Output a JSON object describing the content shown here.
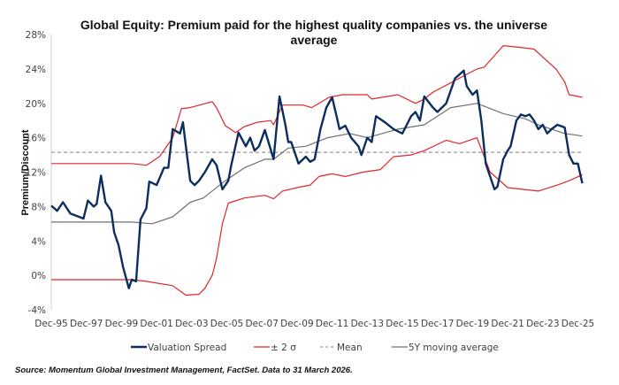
{
  "chart_data": {
    "type": "line",
    "title_line1": "Global Equity: Premium paid for the highest quality companies vs. the universe",
    "title_line2": "average",
    "ylabel": "Premium/Discount",
    "xlabel": "",
    "ylim": [
      -4,
      28
    ],
    "yticks": [
      "28%",
      "24%",
      "20%",
      "16%",
      "12%",
      "8%",
      "4%",
      "0%",
      "-4%"
    ],
    "ytick_values": [
      28,
      24,
      20,
      16,
      12,
      8,
      4,
      0,
      -4
    ],
    "xticks": [
      "Dec-95",
      "Dec-97",
      "Dec-99",
      "Dec-01",
      "Dec-03",
      "Dec-05",
      "Dec-07",
      "Dec-09",
      "Dec-11",
      "Dec-13",
      "Dec-15",
      "Dec-17",
      "Dec-19",
      "Dec-21",
      "Dec-23",
      "Dec-25"
    ],
    "xlim": [
      "1995-12",
      "2026-03"
    ],
    "grid": false,
    "legend_placement": "bottom",
    "colors": {
      "spread": "#0b2d5f",
      "band": "#e0262b",
      "mean": "#999999",
      "ma": "#707070"
    },
    "mean": 14.3,
    "series": [
      {
        "name": "Valuation Spread",
        "key": "spread",
        "points": [
          [
            "1995-12",
            8.1
          ],
          [
            "1996-04",
            7.5
          ],
          [
            "1996-08",
            8.5
          ],
          [
            "1997-01",
            7.2
          ],
          [
            "1997-07",
            6.8
          ],
          [
            "1997-10",
            6.6
          ],
          [
            "1998-01",
            8.7
          ],
          [
            "1998-05",
            8.0
          ],
          [
            "1998-07",
            8.3
          ],
          [
            "1998-10",
            11.6
          ],
          [
            "1999-01",
            8.5
          ],
          [
            "1999-05",
            7.5
          ],
          [
            "1999-07",
            5.0
          ],
          [
            "1999-10",
            3.5
          ],
          [
            "2000-01",
            1.0
          ],
          [
            "2000-05",
            -1.5
          ],
          [
            "2000-07",
            -0.5
          ],
          [
            "2000-10",
            -0.7
          ],
          [
            "2001-01",
            6.5
          ],
          [
            "2001-05",
            7.8
          ],
          [
            "2001-07",
            10.9
          ],
          [
            "2001-12",
            10.5
          ],
          [
            "2002-05",
            12.5
          ],
          [
            "2002-08",
            12.5
          ],
          [
            "2002-11",
            17.0
          ],
          [
            "2003-04",
            16.5
          ],
          [
            "2003-06",
            17.8
          ],
          [
            "2003-08",
            15.0
          ],
          [
            "2003-11",
            11.0
          ],
          [
            "2004-02",
            10.5
          ],
          [
            "2004-05",
            11.0
          ],
          [
            "2004-09",
            12.0
          ],
          [
            "2005-02",
            13.5
          ],
          [
            "2005-05",
            12.8
          ],
          [
            "2005-09",
            10.0
          ],
          [
            "2006-01",
            11.0
          ],
          [
            "2006-03",
            12.8
          ],
          [
            "2006-08",
            16.6
          ],
          [
            "2007-01",
            15.0
          ],
          [
            "2007-04",
            16.0
          ],
          [
            "2007-07",
            14.5
          ],
          [
            "2007-10",
            15.0
          ],
          [
            "2008-02",
            16.9
          ],
          [
            "2008-08",
            13.5
          ],
          [
            "2008-12",
            20.8
          ],
          [
            "2009-04",
            17.5
          ],
          [
            "2009-06",
            15.5
          ],
          [
            "2009-08",
            15.5
          ],
          [
            "2010-01",
            13.0
          ],
          [
            "2010-06",
            13.8
          ],
          [
            "2010-09",
            13.2
          ],
          [
            "2010-12",
            13.5
          ],
          [
            "2011-04",
            17.0
          ],
          [
            "2011-08",
            19.5
          ],
          [
            "2011-12",
            20.7
          ],
          [
            "2012-03",
            18.5
          ],
          [
            "2012-05",
            17.0
          ],
          [
            "2012-09",
            17.4
          ],
          [
            "2013-01",
            16.0
          ],
          [
            "2013-06",
            15.0
          ],
          [
            "2013-08",
            14.0
          ],
          [
            "2013-12",
            16.0
          ],
          [
            "2014-03",
            15.5
          ],
          [
            "2014-06",
            18.5
          ],
          [
            "2014-12",
            17.8
          ],
          [
            "2015-06",
            17.0
          ],
          [
            "2015-12",
            16.5
          ],
          [
            "2016-03",
            17.5
          ],
          [
            "2016-06",
            18.5
          ],
          [
            "2016-09",
            19.0
          ],
          [
            "2016-12",
            18.0
          ],
          [
            "2017-03",
            20.8
          ],
          [
            "2017-09",
            19.5
          ],
          [
            "2017-12",
            19.0
          ],
          [
            "2018-03",
            19.5
          ],
          [
            "2018-06",
            20.0
          ],
          [
            "2018-12",
            22.9
          ],
          [
            "2019-06",
            23.8
          ],
          [
            "2019-08",
            22.0
          ],
          [
            "2019-12",
            21.0
          ],
          [
            "2020-03",
            21.5
          ],
          [
            "2020-06",
            18.0
          ],
          [
            "2020-09",
            13.0
          ],
          [
            "2021-01",
            11.0
          ],
          [
            "2021-03",
            10.0
          ],
          [
            "2021-05",
            10.3
          ],
          [
            "2021-09",
            13.5
          ],
          [
            "2021-12",
            14.5
          ],
          [
            "2022-02",
            15.0
          ],
          [
            "2022-06",
            18.0
          ],
          [
            "2022-09",
            18.7
          ],
          [
            "2022-12",
            18.5
          ],
          [
            "2023-03",
            18.7
          ],
          [
            "2023-06",
            18.0
          ],
          [
            "2023-09",
            17.0
          ],
          [
            "2023-12",
            17.5
          ],
          [
            "2024-03",
            16.5
          ],
          [
            "2024-06",
            17.0
          ],
          [
            "2024-10",
            17.5
          ],
          [
            "2025-03",
            17.2
          ],
          [
            "2025-06",
            14.0
          ],
          [
            "2025-09",
            13.0
          ],
          [
            "2025-12",
            13.0
          ],
          [
            "2026-03",
            10.7
          ]
        ]
      },
      {
        "name": "± 2 σ",
        "key": "band_upper",
        "points": [
          [
            "1995-12",
            13.0
          ],
          [
            "2000-07",
            13.0
          ],
          [
            "2001-05",
            12.8
          ],
          [
            "2002-02",
            13.8
          ],
          [
            "2002-11",
            16.0
          ],
          [
            "2003-05",
            19.4
          ],
          [
            "2003-11",
            19.5
          ],
          [
            "2005-02",
            20.2
          ],
          [
            "2005-05",
            19.5
          ],
          [
            "2005-11",
            17.4
          ],
          [
            "2006-06",
            16.6
          ],
          [
            "2006-12",
            17.3
          ],
          [
            "2007-09",
            17.8
          ],
          [
            "2008-06",
            18.0
          ],
          [
            "2008-08",
            17.5
          ],
          [
            "2009-02",
            19.8
          ],
          [
            "2010-04",
            19.8
          ],
          [
            "2010-10",
            19.5
          ],
          [
            "2011-10",
            20.7
          ],
          [
            "2012-07",
            21.0
          ],
          [
            "2013-12",
            21.0
          ],
          [
            "2014-03",
            20.5
          ],
          [
            "2015-09",
            21.0
          ],
          [
            "2016-09",
            20.0
          ],
          [
            "2017-03",
            20.5
          ],
          [
            "2017-09",
            21.3
          ],
          [
            "2020-03",
            24.0
          ],
          [
            "2020-08",
            24.2
          ],
          [
            "2021-09",
            26.7
          ],
          [
            "2022-09",
            26.5
          ],
          [
            "2023-06",
            26.3
          ],
          [
            "2024-09",
            24.0
          ],
          [
            "2025-03",
            22.5
          ],
          [
            "2025-06",
            21.0
          ],
          [
            "2026-03",
            20.7
          ]
        ]
      },
      {
        "name": "",
        "key": "band_lower",
        "points": [
          [
            "1995-12",
            -0.5
          ],
          [
            "2000-07",
            -0.5
          ],
          [
            "2001-05",
            -0.7
          ],
          [
            "2002-11",
            -1.2
          ],
          [
            "2003-08",
            -2.3
          ],
          [
            "2004-05",
            -2.2
          ],
          [
            "2004-09",
            -1.5
          ],
          [
            "2005-02",
            0.0
          ],
          [
            "2005-05",
            2.0
          ],
          [
            "2005-09",
            6.0
          ],
          [
            "2006-01",
            8.4
          ],
          [
            "2006-12",
            9.0
          ],
          [
            "2008-02",
            9.3
          ],
          [
            "2008-08",
            8.9
          ],
          [
            "2009-02",
            9.8
          ],
          [
            "2009-12",
            10.2
          ],
          [
            "2010-09",
            10.5
          ],
          [
            "2011-03",
            11.5
          ],
          [
            "2011-12",
            11.8
          ],
          [
            "2012-09",
            11.5
          ],
          [
            "2013-09",
            12.0
          ],
          [
            "2014-09",
            12.3
          ],
          [
            "2015-06",
            13.8
          ],
          [
            "2016-06",
            14.0
          ],
          [
            "2017-03",
            14.5
          ],
          [
            "2018-06",
            15.7
          ],
          [
            "2019-03",
            15.3
          ],
          [
            "2020-03",
            16.0
          ],
          [
            "2020-12",
            12.0
          ],
          [
            "2021-12",
            10.2
          ],
          [
            "2023-09",
            9.8
          ],
          [
            "2024-10",
            10.5
          ],
          [
            "2025-06",
            11.0
          ],
          [
            "2026-03",
            11.7
          ]
        ]
      },
      {
        "name": "5Y moving average",
        "key": "ma",
        "points": [
          [
            "1995-12",
            6.2
          ],
          [
            "2000-07",
            6.2
          ],
          [
            "2001-09",
            6.0
          ],
          [
            "2002-11",
            6.8
          ],
          [
            "2003-11",
            8.5
          ],
          [
            "2004-08",
            9.0
          ],
          [
            "2005-11",
            11.0
          ],
          [
            "2006-12",
            12.5
          ],
          [
            "2008-02",
            13.5
          ],
          [
            "2008-08",
            13.5
          ],
          [
            "2009-06",
            14.8
          ],
          [
            "2010-06",
            15.0
          ],
          [
            "2011-09",
            16.0
          ],
          [
            "2012-12",
            16.5
          ],
          [
            "2013-12",
            16.0
          ],
          [
            "2015-09",
            17.0
          ],
          [
            "2017-03",
            17.5
          ],
          [
            "2018-09",
            19.5
          ],
          [
            "2020-03",
            20.0
          ],
          [
            "2021-09",
            18.8
          ],
          [
            "2022-12",
            18.2
          ],
          [
            "2023-09",
            17.5
          ],
          [
            "2025-03",
            16.5
          ],
          [
            "2026-03",
            16.2
          ]
        ]
      }
    ],
    "legend": [
      {
        "label": "Valuation Spread",
        "key": "spread"
      },
      {
        "label": "± 2 σ",
        "key": "band"
      },
      {
        "label": "Mean",
        "key": "mean"
      },
      {
        "label": "5Y moving average",
        "key": "ma"
      }
    ]
  },
  "footer": {
    "source": "Source: Momentum Global Investment Management, FactSet. Data to 31 March 2026."
  }
}
